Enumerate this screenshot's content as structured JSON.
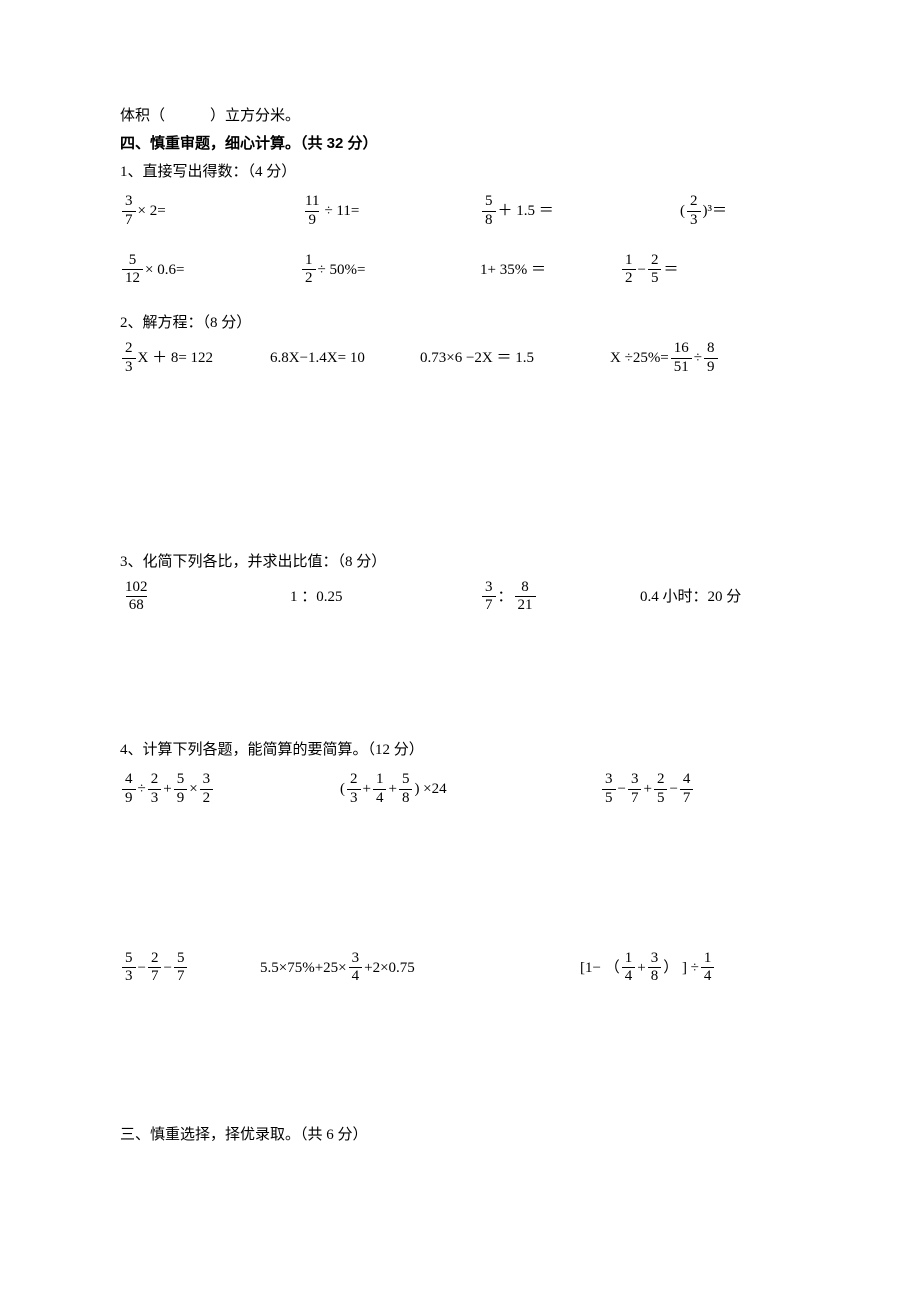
{
  "topLine": {
    "before": "体积（",
    "blank": "　　　",
    "after": "）立方分米。"
  },
  "section4": {
    "heading": "四、慎重审题，细心计算。（共 32 分）",
    "q1": {
      "title": "1、直接写出得数：（4 分）",
      "row1": [
        {
          "f": {
            "n": "3",
            "d": "7"
          },
          "tail": "× 2="
        },
        {
          "f": {
            "n": "11",
            "d": "9"
          },
          "tail": " ÷ 11="
        },
        {
          "f": {
            "n": "5",
            "d": "8"
          },
          "tail": " ＋ 1.5 ＝"
        },
        {
          "lp": "(",
          "f": {
            "n": "2",
            "d": "3"
          },
          "rp": ")",
          "tail": " ³＝"
        }
      ],
      "row2": [
        {
          "f": {
            "n": "5",
            "d": "12"
          },
          "tail": " × 0.6="
        },
        {
          "f": {
            "n": "1",
            "d": "2"
          },
          "tail": " ÷ 50%="
        },
        {
          "text": "1+ 35% ＝"
        },
        {
          "f1": {
            "n": "1",
            "d": "2"
          },
          "mid": " − ",
          "f2": {
            "n": "2",
            "d": "5"
          },
          "tail": " ＝"
        }
      ],
      "widths_r1": [
        180,
        180,
        200,
        120
      ],
      "widths_r2": [
        180,
        180,
        140,
        180
      ]
    },
    "q2": {
      "title": "2、解方程：（8 分）",
      "items": [
        {
          "f": {
            "n": "2",
            "d": "3"
          },
          "tail": "X ＋ 8= 122"
        },
        {
          "text": "6.8X−1.4X= 10"
        },
        {
          "text": "0.73×6 −2X ＝ 1.5"
        },
        {
          "pre": "X ÷25%= ",
          "f1": {
            "n": "16",
            "d": "51"
          },
          "mid": " ÷ ",
          "f2": {
            "n": "8",
            "d": "9"
          }
        }
      ],
      "widths": [
        150,
        150,
        190,
        190
      ]
    },
    "q3": {
      "title": "3、化简下列各比，并求出比值：（8 分）",
      "items": [
        {
          "f": {
            "n": "102",
            "d": "68"
          }
        },
        {
          "text": "1 ：0.25"
        },
        {
          "f1": {
            "n": "3",
            "d": "7"
          },
          "mid": "：",
          "f2": {
            "n": "8",
            "d": "21"
          }
        },
        {
          "text": "0.4 小时：20 分"
        }
      ],
      "widths": [
        170,
        190,
        160,
        160
      ]
    },
    "q4": {
      "title": "4、计算下列各题，能简算的要简算。（12 分）",
      "row1": [
        {
          "parts": [
            {
              "f": {
                "n": "4",
                "d": "9"
              }
            },
            {
              "t": " ÷ "
            },
            {
              "f": {
                "n": "2",
                "d": "3"
              }
            },
            {
              "t": " + "
            },
            {
              "f": {
                "n": "5",
                "d": "9"
              }
            },
            {
              "t": " × "
            },
            {
              "f": {
                "n": "3",
                "d": "2"
              }
            }
          ]
        },
        {
          "parts": [
            {
              "t": "( "
            },
            {
              "f": {
                "n": "2",
                "d": "3"
              }
            },
            {
              "t": "+"
            },
            {
              "f": {
                "n": "1",
                "d": "4"
              }
            },
            {
              "t": " + "
            },
            {
              "f": {
                "n": "5",
                "d": "8"
              }
            },
            {
              "t": " ) ×24"
            }
          ]
        },
        {
          "parts": [
            {
              "f": {
                "n": "3",
                "d": "5"
              }
            },
            {
              "t": " − "
            },
            {
              "f": {
                "n": "3",
                "d": "7"
              }
            },
            {
              "t": " + "
            },
            {
              "f": {
                "n": "2",
                "d": "5"
              }
            },
            {
              "t": " − "
            },
            {
              "f": {
                "n": "4",
                "d": "7"
              }
            }
          ]
        }
      ],
      "row2": [
        {
          "parts": [
            {
              "f": {
                "n": "5",
                "d": "3"
              }
            },
            {
              "t": " − "
            },
            {
              "f": {
                "n": "2",
                "d": "7"
              }
            },
            {
              "t": " − "
            },
            {
              "f": {
                "n": "5",
                "d": "7"
              }
            }
          ]
        },
        {
          "parts": [
            {
              "t": "5.5×75%+25× "
            },
            {
              "f": {
                "n": "3",
                "d": "4"
              }
            },
            {
              "t": " +2×0.75"
            }
          ]
        },
        {
          "parts": [
            {
              "t": "[1− （"
            },
            {
              "f": {
                "n": "1",
                "d": "4"
              }
            },
            {
              "t": " + "
            },
            {
              "f": {
                "n": "3",
                "d": "8"
              }
            },
            {
              "t": "） ] ÷ "
            },
            {
              "f": {
                "n": "1",
                "d": "4"
              }
            }
          ]
        }
      ],
      "widths_r1": [
        220,
        260,
        200
      ],
      "widths_r2": [
        140,
        320,
        220
      ]
    }
  },
  "section3": {
    "heading": "三、慎重选择，择优录取。（共 6 分）"
  }
}
